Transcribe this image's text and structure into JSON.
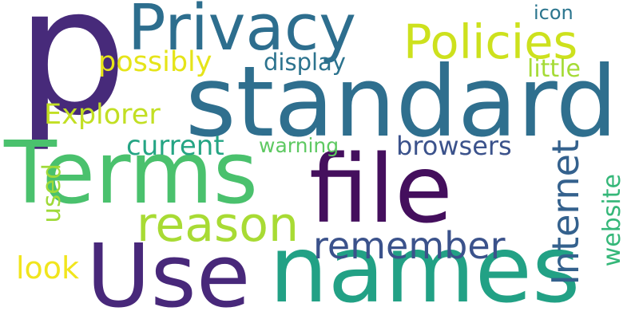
{
  "words": [
    {
      "text": "p",
      "color": "#472a7a"
    },
    {
      "text": "standard",
      "color": "#2f6f8e"
    },
    {
      "text": "Terms",
      "color": "#4ac16d"
    },
    {
      "text": "file",
      "color": "#440f5d"
    },
    {
      "text": "Use",
      "color": "#48287a"
    },
    {
      "text": "names",
      "color": "#22a185"
    },
    {
      "text": "Privacy",
      "color": "#2d6e8e"
    },
    {
      "text": "Policies",
      "color": "#cde11d"
    },
    {
      "text": "reason",
      "color": "#a8db34"
    },
    {
      "text": "remember",
      "color": "#3b528b"
    },
    {
      "text": "Internet",
      "color": "#34618d"
    },
    {
      "text": "browsers",
      "color": "#3b528b"
    },
    {
      "text": "website",
      "color": "#35b779"
    },
    {
      "text": "current",
      "color": "#25a584"
    },
    {
      "text": "Explorer",
      "color": "#c2df23"
    },
    {
      "text": "possibly",
      "color": "#e5e419"
    },
    {
      "text": "display",
      "color": "#2c738e"
    },
    {
      "text": "little",
      "color": "#a5db36"
    },
    {
      "text": "icon",
      "color": "#2b758e"
    },
    {
      "text": "warning",
      "color": "#5ec962"
    },
    {
      "text": "used",
      "color": "#a0da39"
    },
    {
      "text": "look",
      "color": "#f1e51d"
    }
  ]
}
